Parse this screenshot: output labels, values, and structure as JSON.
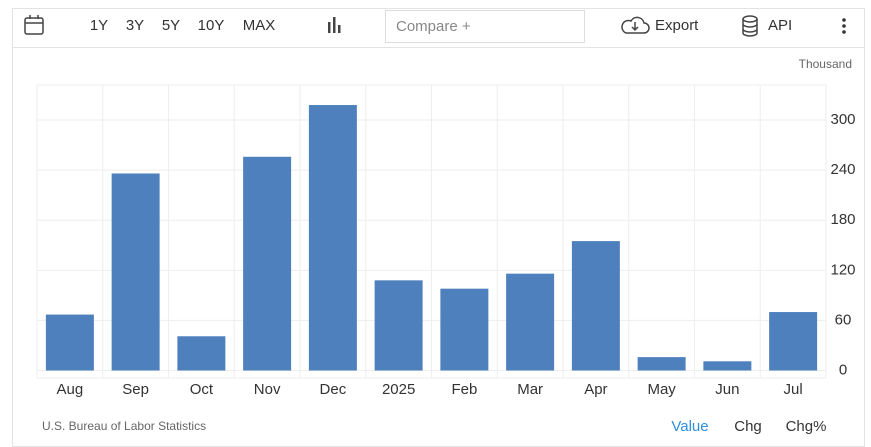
{
  "toolbar": {
    "ranges": [
      "1Y",
      "3Y",
      "5Y",
      "10Y",
      "MAX"
    ],
    "compare": "Compare +",
    "export": "Export",
    "api": "API"
  },
  "chart_data": {
    "type": "bar",
    "unit_label": "Thousand",
    "source": "U.S. Bureau of Labor Statistics",
    "categories": [
      "Aug",
      "Sep",
      "Oct",
      "Nov",
      "Dec",
      "2025",
      "Feb",
      "Mar",
      "Apr",
      "May",
      "Jun",
      "Jul"
    ],
    "values": [
      67,
      236,
      41,
      256,
      318,
      108,
      98,
      116,
      155,
      16,
      11,
      70
    ],
    "color": "#4e80bd",
    "ylim": [
      -9,
      342
    ],
    "yticks": [
      0,
      60,
      120,
      180,
      240,
      300
    ],
    "grid": true
  },
  "footer": {
    "tabs": [
      "Value",
      "Chg",
      "Chg%"
    ]
  }
}
